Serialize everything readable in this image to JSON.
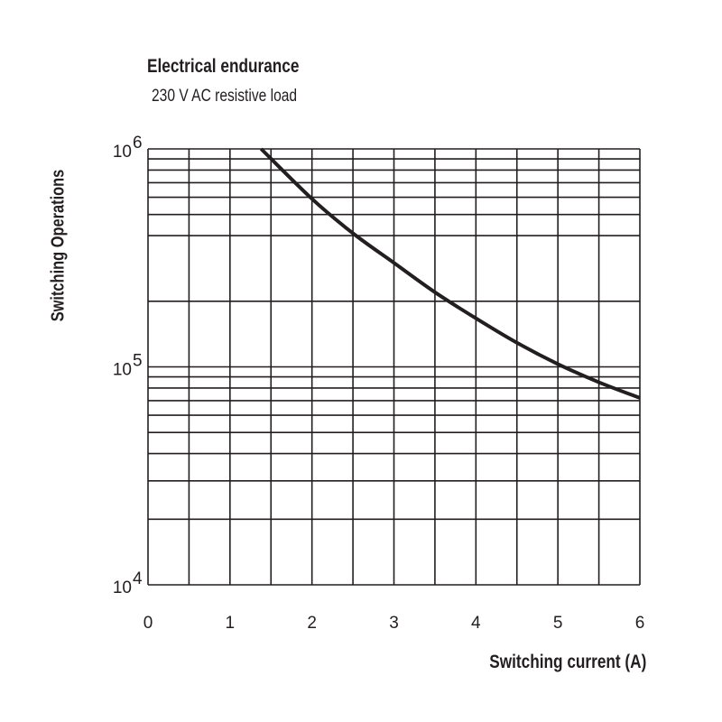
{
  "title": "Electrical endurance",
  "subtitle": "230 V AC resistive load",
  "chart_data": {
    "type": "line",
    "title": "Electrical endurance",
    "subtitle": "230 V AC resistive load",
    "xlabel": "Switching current (A)",
    "ylabel": "Switching Operations",
    "xlim": [
      0,
      6
    ],
    "ylim": [
      10000,
      1000000
    ],
    "yscale": "log",
    "grid": true,
    "x_ticks": [
      "0",
      "1",
      "2",
      "3",
      "4",
      "5",
      "6"
    ],
    "x_grid_step": 0.5,
    "y_ticks": [
      {
        "base": "10",
        "exp": "4",
        "value": 10000
      },
      {
        "base": "10",
        "exp": "5",
        "value": 100000
      },
      {
        "base": "10",
        "exp": "6",
        "value": 1000000
      }
    ],
    "y_minor_grid": {
      "10000": [
        2,
        3,
        4,
        5,
        6,
        7,
        8,
        9
      ],
      "100000": [
        2,
        4,
        5,
        6,
        7,
        8,
        9
      ]
    },
    "line_color": "#231f20",
    "series": [
      {
        "x": [
          1.38,
          2.0,
          2.5,
          3.0,
          3.5,
          4.0,
          4.5,
          5.0,
          5.5,
          6.0
        ],
        "y": [
          1000000,
          590000,
          410000,
          300000,
          220000,
          167000,
          129000,
          103000,
          85000,
          72000
        ]
      }
    ]
  }
}
